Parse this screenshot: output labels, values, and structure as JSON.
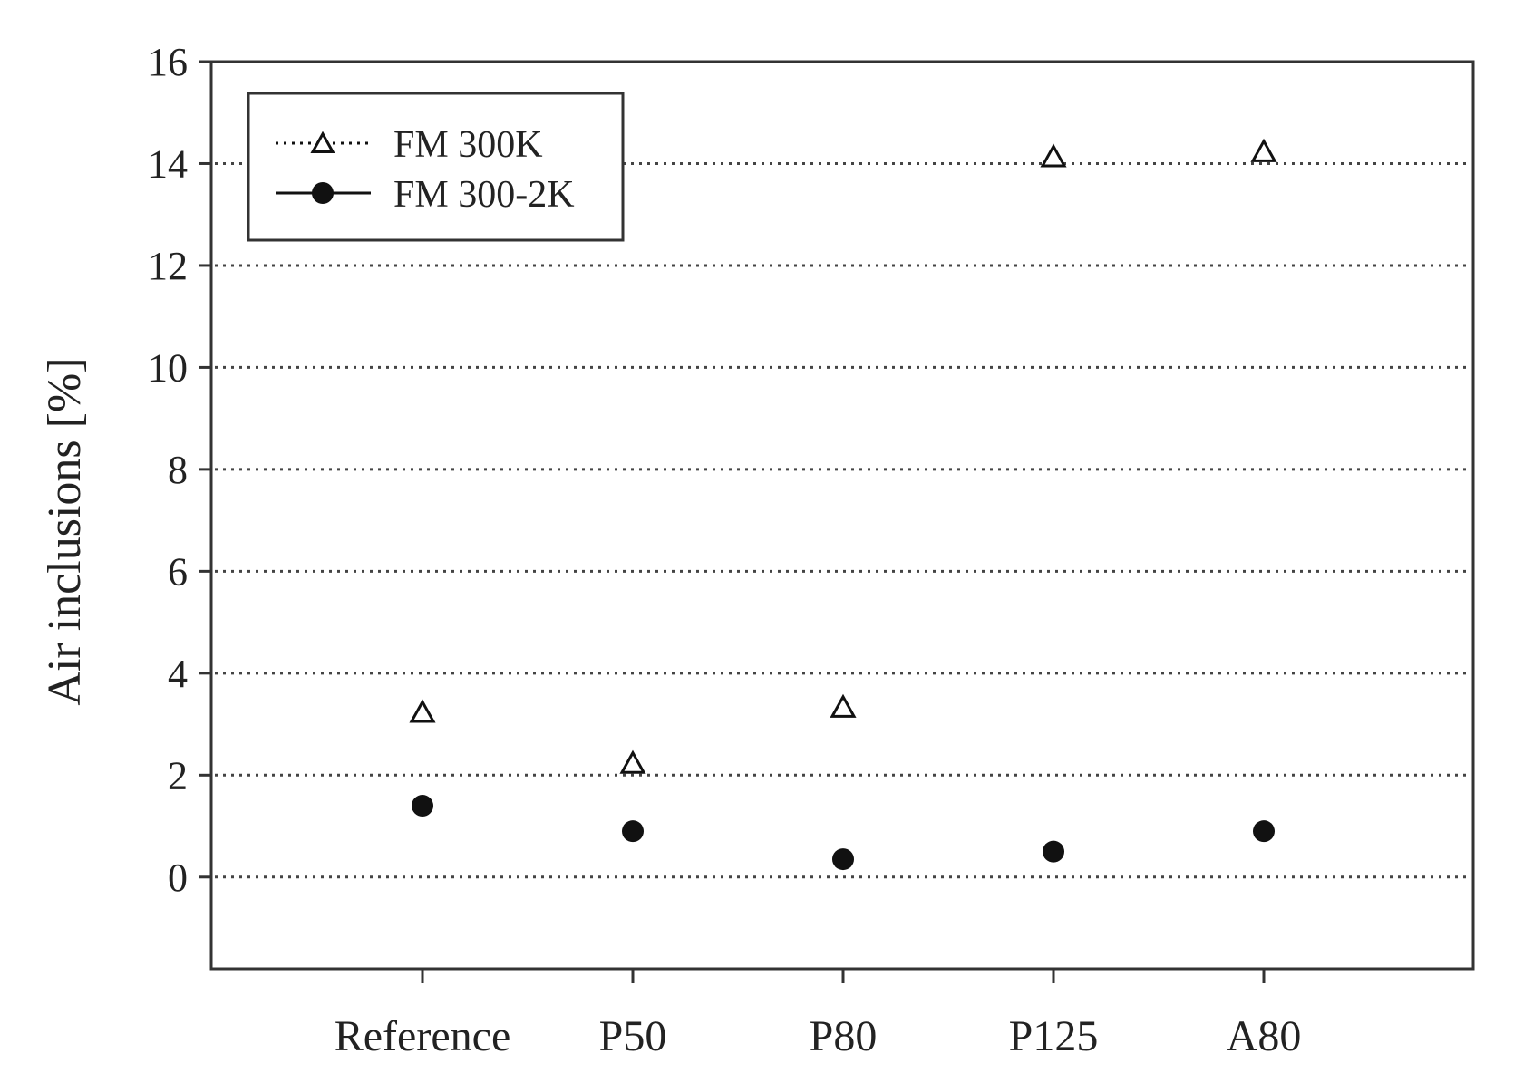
{
  "chart_data": {
    "type": "scatter",
    "title": "",
    "xlabel": "",
    "ylabel": "Air inclusions [%]",
    "categories": [
      "Reference",
      "P50",
      "P80",
      "P125",
      "A80"
    ],
    "ylim": [
      -1.8,
      16
    ],
    "yticks": [
      0,
      2,
      4,
      6,
      8,
      10,
      12,
      14,
      16
    ],
    "grid": "horizontal-dotted",
    "legend_position": "top-left",
    "series": [
      {
        "name": "FM 300K",
        "marker": "open-triangle",
        "legend_line": "dotted",
        "values": [
          3.2,
          2.2,
          3.3,
          14.1,
          14.2
        ]
      },
      {
        "name": "FM 300-2K",
        "marker": "filled-circle",
        "legend_line": "solid",
        "values": [
          1.4,
          0.9,
          0.35,
          0.5,
          0.9
        ]
      }
    ],
    "colors": {
      "axis": "#333333",
      "grid": "#444444",
      "marker": "#111111"
    }
  }
}
